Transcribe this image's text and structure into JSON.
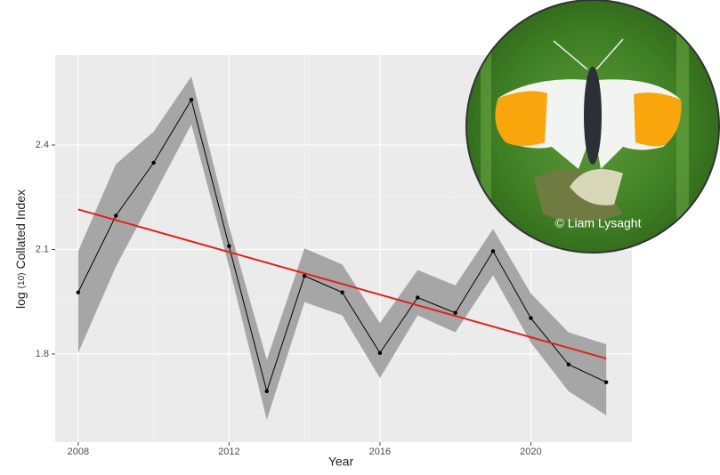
{
  "chart_data": {
    "type": "line",
    "x_label": "Year",
    "y_label": {
      "prefix": "log",
      "subscript": "(10)",
      "text": "Collated Index"
    },
    "xlim": [
      2007.39,
      2022.68
    ],
    "ylim": [
      1.547,
      2.658
    ],
    "xticks": [
      2008,
      2012,
      2016,
      2020
    ],
    "yticks": [
      1.8,
      2.1,
      2.4
    ],
    "grid": true,
    "x": [
      2008,
      2009,
      2010,
      2011,
      2012,
      2013,
      2014,
      2015,
      2016,
      2017,
      2018,
      2019,
      2020,
      2021,
      2022
    ],
    "series": [
      {
        "color": "#000000",
        "values": [
          1.977,
          2.197,
          2.349,
          2.53,
          2.11,
          1.693,
          2.024,
          1.977,
          1.803,
          1.962,
          1.918,
          2.095,
          1.903,
          1.77,
          1.719
        ],
        "upper": [
          2.095,
          2.345,
          2.438,
          2.597,
          2.166,
          1.783,
          2.103,
          2.057,
          1.889,
          2.041,
          1.997,
          2.159,
          1.974,
          1.862,
          1.828
        ],
        "lower": [
          1.803,
          2.051,
          2.254,
          2.459,
          2.051,
          1.611,
          1.949,
          1.911,
          1.731,
          1.911,
          1.862,
          2.026,
          1.833,
          1.693,
          1.624
        ],
        "band_color": "#a6a6a6"
      }
    ],
    "trend": {
      "color": "#e0211d",
      "x": [
        2008,
        2022
      ],
      "values": [
        2.215,
        1.787
      ]
    },
    "photo_credit": "© Liam Lysaght"
  }
}
